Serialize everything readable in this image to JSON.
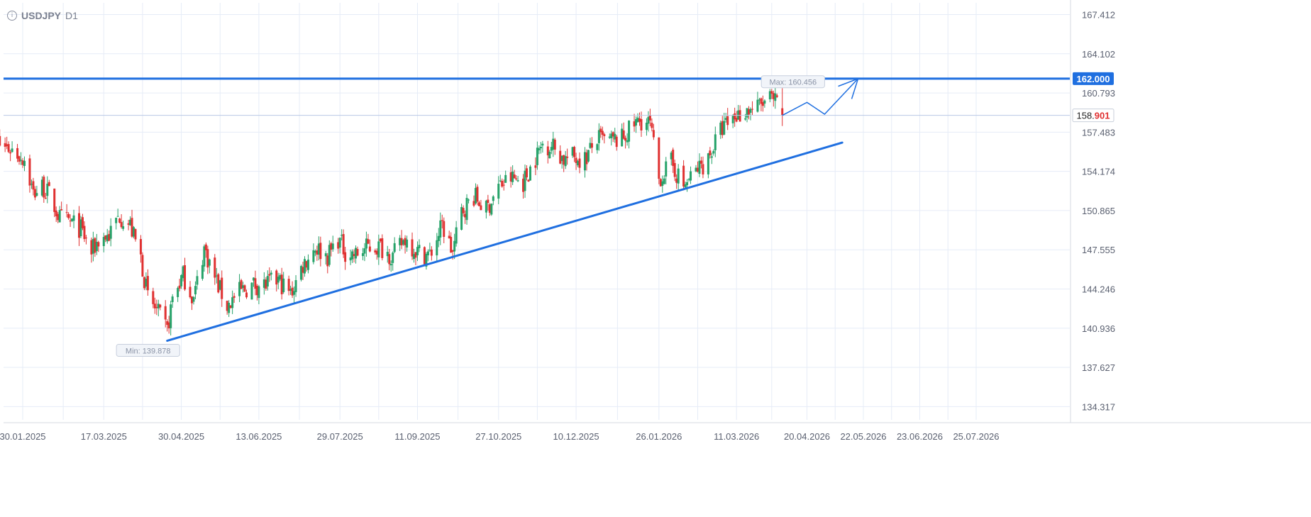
{
  "header": {
    "info_icon": "info-icon",
    "symbol": "USDJPY",
    "timeframe": "D1"
  },
  "chart_data": {
    "type": "candlestick",
    "symbol": "USDJPY",
    "timeframe": "D1",
    "colors": {
      "up": "#26a269",
      "down": "#e03131",
      "line": "#1f6fe0",
      "grid": "#e6ecf7",
      "axis_text": "#5a6070",
      "label_badge": "#1f6fe0",
      "last_price_decimals": "#e03131"
    },
    "y_ticks": [
      "167.412",
      "164.102",
      "160.793",
      "157.483",
      "154.174",
      "150.865",
      "147.555",
      "144.246",
      "140.936",
      "137.627",
      "134.317"
    ],
    "x_ticks": [
      "30.01.2025",
      "17.03.2025",
      "30.04.2025",
      "13.06.2025",
      "29.07.2025",
      "11.09.2025",
      "27.10.2025",
      "10.12.2025",
      "26.01.2026",
      "11.03.2026",
      "20.04.2026",
      "22.05.2026",
      "23.06.2026",
      "25.07.2026"
    ],
    "ylim": [
      133.2,
      168.4
    ],
    "grid": true,
    "price_series": [
      [
        "2025-01-10",
        157.6
      ],
      [
        "2025-01-17",
        156.4
      ],
      [
        "2025-01-24",
        156.0
      ],
      [
        "2025-01-31",
        155.2
      ],
      [
        "2025-02-05",
        152.3
      ],
      [
        "2025-02-10",
        152.9
      ],
      [
        "2025-02-14",
        152.2
      ],
      [
        "2025-02-20",
        150.2
      ],
      [
        "2025-02-27",
        149.8
      ],
      [
        "2025-03-04",
        149.3
      ],
      [
        "2025-03-10",
        147.3
      ],
      [
        "2025-03-14",
        148.4
      ],
      [
        "2025-03-20",
        148.8
      ],
      [
        "2025-03-26",
        150.5
      ],
      [
        "2025-04-01",
        149.6
      ],
      [
        "2025-04-07",
        146.9
      ],
      [
        "2025-04-11",
        143.5
      ],
      [
        "2025-04-16",
        142.4
      ],
      [
        "2025-04-22",
        140.7
      ],
      [
        "2025-04-25",
        143.5
      ],
      [
        "2025-05-01",
        145.4
      ],
      [
        "2025-05-07",
        143.4
      ],
      [
        "2025-05-13",
        147.7
      ],
      [
        "2025-05-19",
        145.2
      ],
      [
        "2025-05-26",
        142.8
      ],
      [
        "2025-06-02",
        144.0
      ],
      [
        "2025-06-10",
        144.6
      ],
      [
        "2025-06-17",
        144.6
      ],
      [
        "2025-06-24",
        145.0
      ],
      [
        "2025-07-01",
        143.8
      ],
      [
        "2025-07-08",
        146.3
      ],
      [
        "2025-07-15",
        147.8
      ],
      [
        "2025-07-22",
        147.0
      ],
      [
        "2025-07-28",
        148.5
      ],
      [
        "2025-08-01",
        147.4
      ],
      [
        "2025-08-07",
        147.1
      ],
      [
        "2025-08-14",
        147.8
      ],
      [
        "2025-08-21",
        147.8
      ],
      [
        "2025-08-28",
        147.0
      ],
      [
        "2025-09-04",
        148.5
      ],
      [
        "2025-09-11",
        147.4
      ],
      [
        "2025-09-18",
        147.1
      ],
      [
        "2025-09-25",
        149.6
      ],
      [
        "2025-10-01",
        147.3
      ],
      [
        "2025-10-06",
        150.8
      ],
      [
        "2025-10-13",
        152.1
      ],
      [
        "2025-10-20",
        150.9
      ],
      [
        "2025-10-27",
        152.9
      ],
      [
        "2025-11-03",
        153.6
      ],
      [
        "2025-11-10",
        153.3
      ],
      [
        "2025-11-17",
        155.3
      ],
      [
        "2025-11-21",
        156.5
      ],
      [
        "2025-11-27",
        156.3
      ],
      [
        "2025-12-03",
        155.2
      ],
      [
        "2025-12-08",
        155.4
      ],
      [
        "2025-12-15",
        155.2
      ],
      [
        "2025-12-22",
        156.9
      ],
      [
        "2025-12-29",
        156.7
      ],
      [
        "2026-01-05",
        156.9
      ],
      [
        "2026-01-12",
        158.1
      ],
      [
        "2026-01-16",
        158.5
      ],
      [
        "2026-01-21",
        158.1
      ],
      [
        "2026-01-26",
        153.5
      ],
      [
        "2026-02-02",
        154.9
      ],
      [
        "2026-02-09",
        152.9
      ],
      [
        "2026-02-15",
        154.0
      ],
      [
        "2026-02-23",
        155.3
      ],
      [
        "2026-03-02",
        157.6
      ],
      [
        "2026-03-09",
        158.7
      ],
      [
        "2026-03-16",
        159.3
      ],
      [
        "2026-03-23",
        159.6
      ],
      [
        "2026-03-30",
        160.3
      ],
      [
        "2026-04-03",
        159.8
      ],
      [
        "2026-04-06",
        158.9
      ]
    ],
    "last_price": {
      "int": "158.",
      "dec": "901",
      "value": 158.901
    },
    "max_label": "Max: 160.456",
    "min_label": "Min: 139.878",
    "max": {
      "date": "2026-03-31",
      "value": 160.456
    },
    "min": {
      "date": "2025-04-22",
      "value": 139.878
    },
    "horizontal_level": {
      "label": "162.000",
      "value": 162.0
    },
    "trendline": {
      "from": [
        "2025-04-22",
        139.878
      ],
      "to": [
        "2026-05-10",
        156.6
      ]
    },
    "projection_path": [
      [
        "2026-04-06",
        158.901
      ],
      [
        "2026-04-20",
        160.0
      ],
      [
        "2026-04-30",
        159.0
      ],
      [
        "2026-05-19",
        162.0
      ]
    ]
  }
}
